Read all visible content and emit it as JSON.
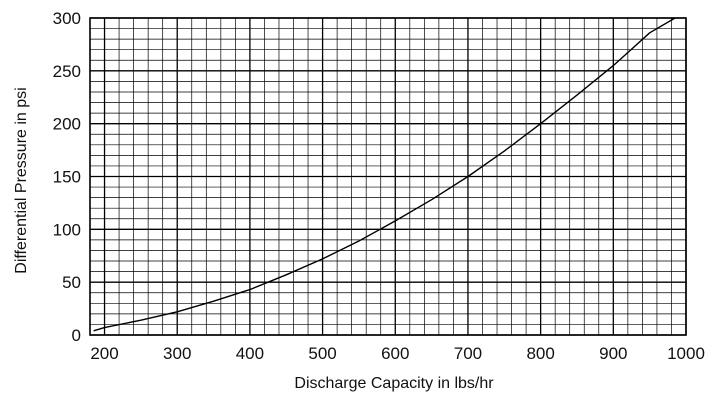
{
  "chart_data": {
    "type": "line",
    "xlabel": "Discharge Capacity in lbs/hr",
    "ylabel": "Differential Pressure in psi",
    "xlim": [
      180,
      1000
    ],
    "ylim": [
      0,
      300
    ],
    "xticks": [
      200,
      300,
      400,
      500,
      600,
      700,
      800,
      900,
      1000
    ],
    "yticks": [
      0,
      50,
      100,
      150,
      200,
      250,
      300
    ],
    "grid": true,
    "major_grid_step": {
      "x": 100,
      "y": 50
    },
    "minor_divisions": {
      "x": 5,
      "y": 5
    },
    "series": [
      {
        "color": "#000000",
        "x": [
          185,
          200,
          250,
          300,
          350,
          400,
          450,
          500,
          550,
          600,
          650,
          700,
          750,
          800,
          850,
          900,
          950,
          985
        ],
        "y": [
          4,
          7,
          14,
          22,
          32,
          43,
          57,
          72,
          89,
          108,
          128,
          150,
          174,
          200,
          227,
          255,
          286,
          300
        ]
      }
    ]
  }
}
